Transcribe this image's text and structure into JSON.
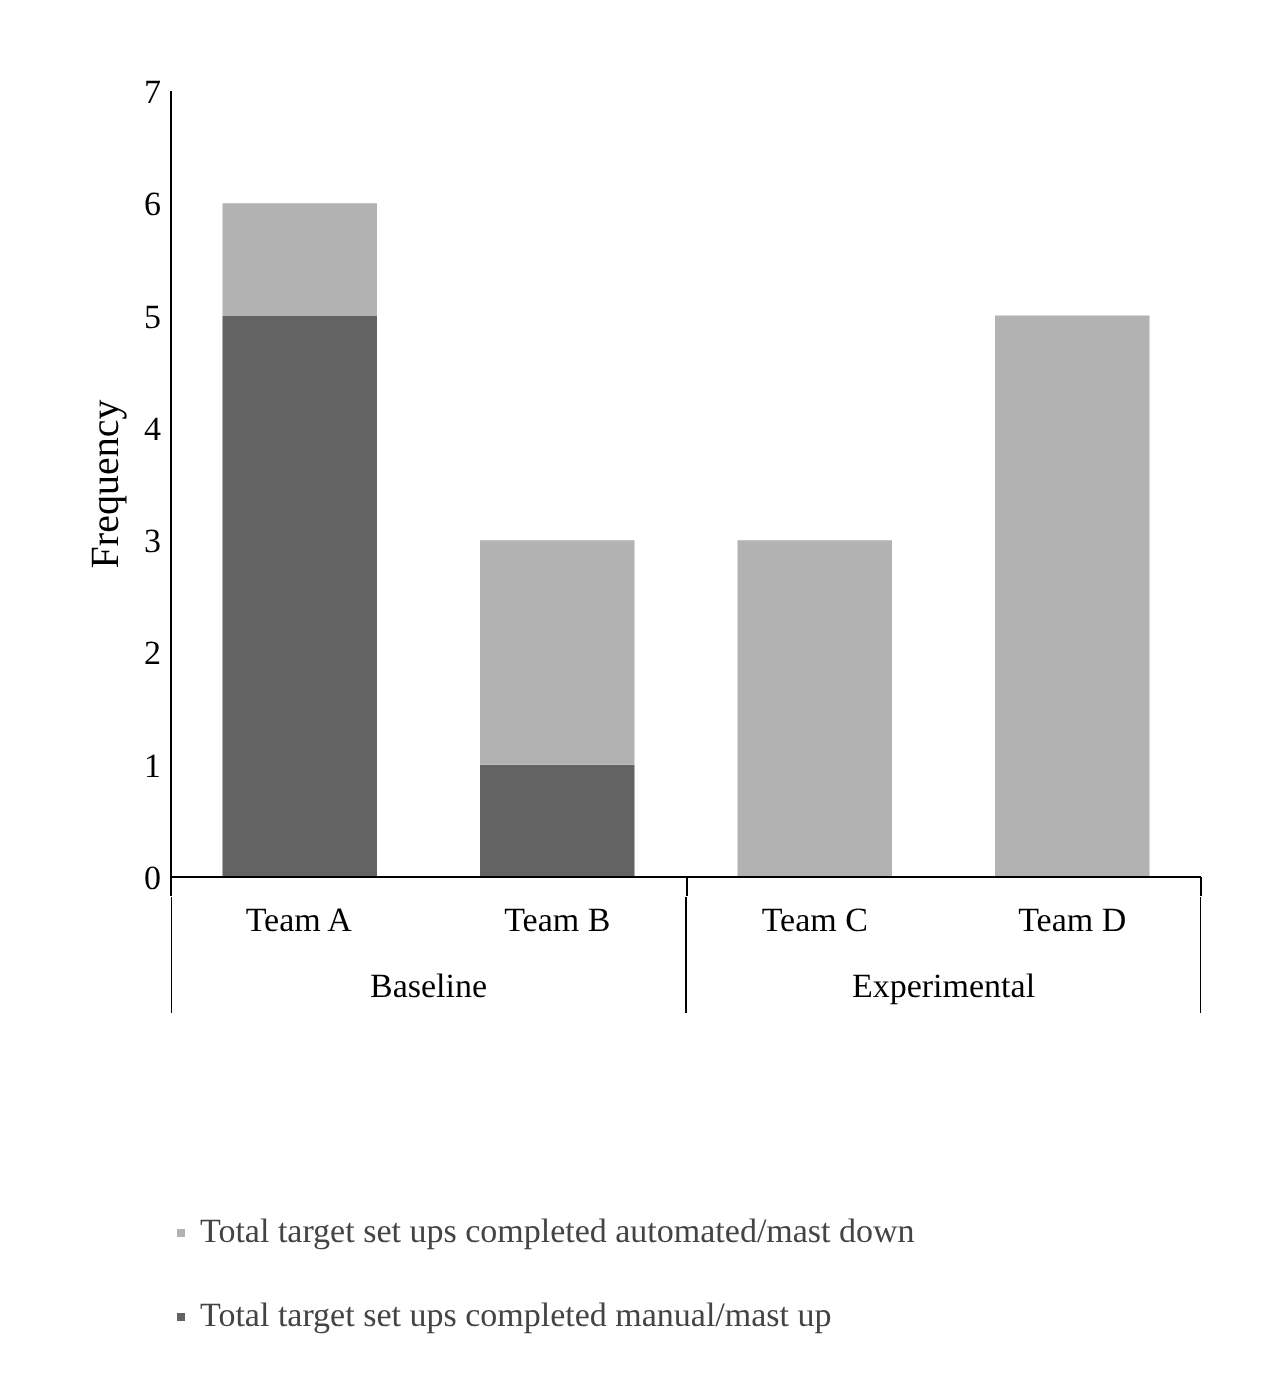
{
  "chart_data": {
    "type": "bar",
    "stacked": true,
    "ylabel": "Frequency",
    "categories": [
      "Team A",
      "Team B",
      "Team C",
      "Team D"
    ],
    "series": [
      {
        "name": "Total target set ups completed manual/mast up",
        "color": "#636363",
        "values": [
          5,
          1,
          0,
          0
        ]
      },
      {
        "name": "Total target set ups completed automated/mast down",
        "color": "#b2b2b2",
        "values": [
          1,
          2,
          3,
          5
        ]
      }
    ],
    "ylim": [
      0,
      7
    ],
    "yticks": [
      0,
      1,
      2,
      3,
      4,
      5,
      6,
      7
    ],
    "grid": false,
    "legend": "bottom",
    "annotations": [
      "Baseline",
      "Experimental"
    ]
  }
}
